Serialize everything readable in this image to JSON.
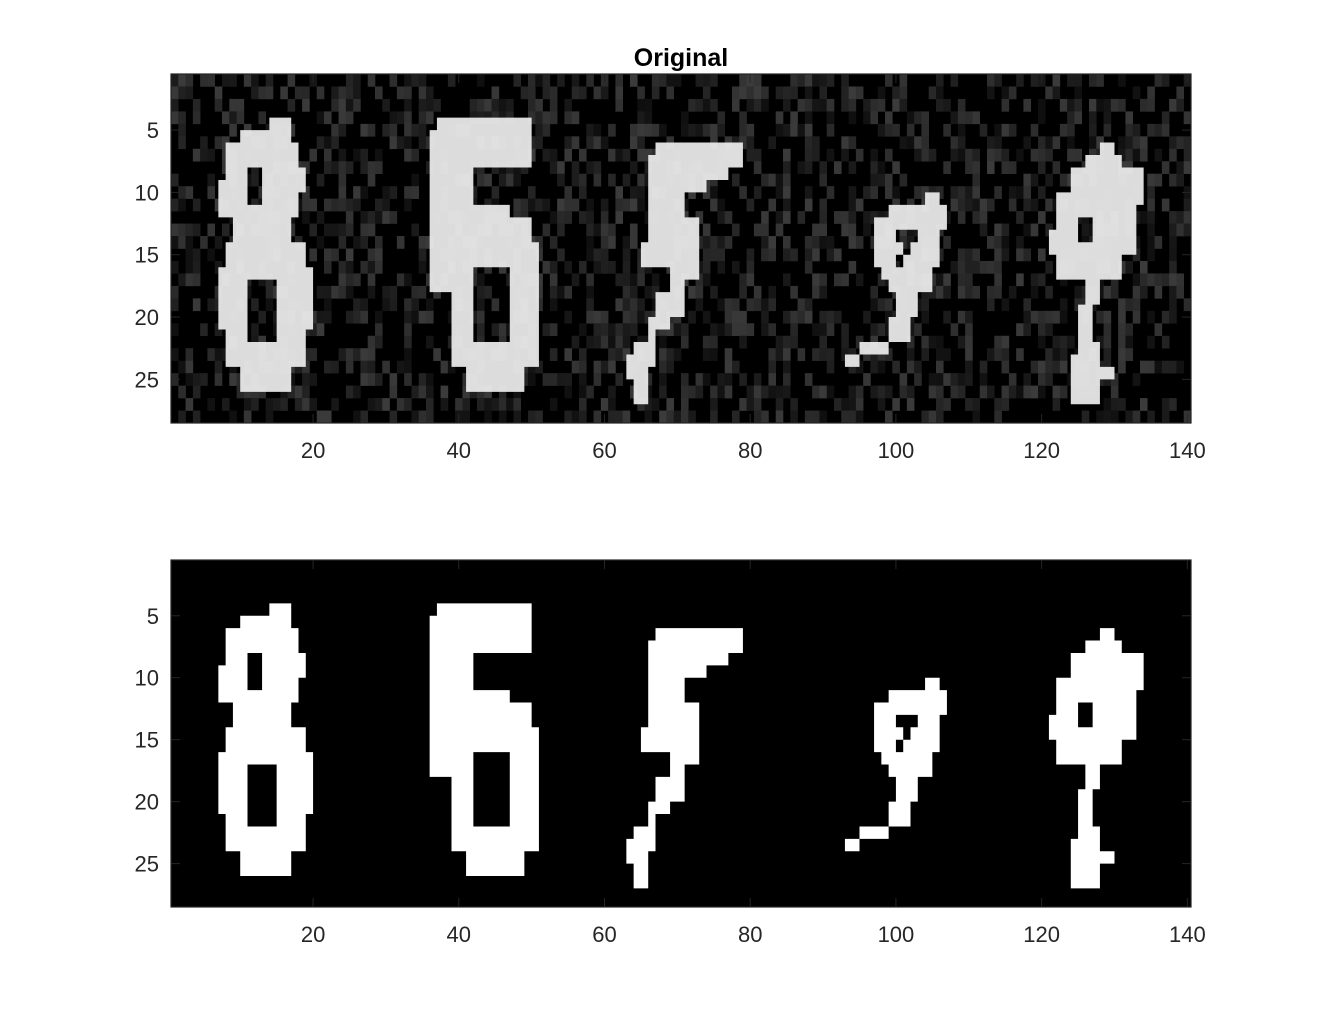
{
  "figure": {
    "background": "#ffffff",
    "axis_color": "#262626"
  },
  "chart_data": [
    {
      "type": "heatmap",
      "title": "Original",
      "colormap": "gray",
      "image_size": {
        "rows": 28,
        "cols": 140
      },
      "xlim": [
        0.5,
        140.5
      ],
      "ylim": [
        0.5,
        28.5
      ],
      "y_reversed": true,
      "xticks": [
        20,
        40,
        60,
        80,
        100,
        120,
        140
      ],
      "yticks": [
        5,
        10,
        15,
        20,
        25
      ],
      "xtick_labels": [
        "20",
        "40",
        "60",
        "80",
        "100",
        "120",
        "140"
      ],
      "ytick_labels": [
        "5",
        "10",
        "15",
        "20",
        "25"
      ],
      "content": "grayscale handwritten digits with background noise",
      "digits": [
        "8",
        "5",
        "5",
        "9",
        "9"
      ]
    },
    {
      "type": "heatmap",
      "title": "",
      "colormap": "gray",
      "image_size": {
        "rows": 28,
        "cols": 140
      },
      "xlim": [
        0.5,
        140.5
      ],
      "ylim": [
        0.5,
        28.5
      ],
      "y_reversed": true,
      "xticks": [
        20,
        40,
        60,
        80,
        100,
        120,
        140
      ],
      "yticks": [
        5,
        10,
        15,
        20,
        25
      ],
      "xtick_labels": [
        "20",
        "40",
        "60",
        "80",
        "100",
        "120",
        "140"
      ],
      "ytick_labels": [
        "5",
        "10",
        "15",
        "20",
        "25"
      ],
      "content": "binary (thresholded) handwritten digits",
      "digits": [
        "8",
        "5",
        "5",
        "9",
        "9"
      ]
    }
  ]
}
